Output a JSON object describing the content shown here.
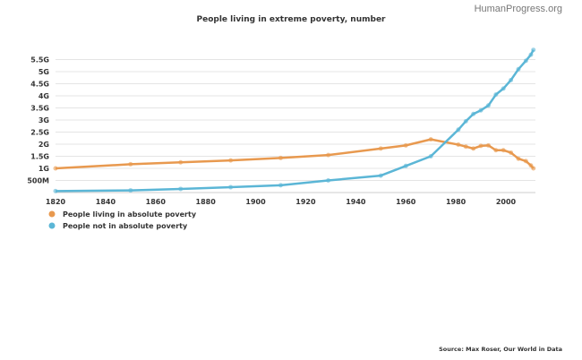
{
  "brand": "HumanProgress.org",
  "source": "Source: Max Roser, Our World in Data",
  "chart_data": {
    "type": "line",
    "title": "People living in extreme poverty, number",
    "xlabel": "",
    "ylabel": "",
    "xlim": [
      1820,
      2011
    ],
    "ylim": [
      0,
      5.9
    ],
    "x_ticks": [
      1820,
      1840,
      1860,
      1880,
      1900,
      1920,
      1940,
      1960,
      1980,
      2000
    ],
    "y_ticks": [
      {
        "v": 0.5,
        "label": "500M"
      },
      {
        "v": 1,
        "label": "1G"
      },
      {
        "v": 1.5,
        "label": "1.5G"
      },
      {
        "v": 2,
        "label": "2G"
      },
      {
        "v": 2.5,
        "label": "2.5G"
      },
      {
        "v": 3,
        "label": "3G"
      },
      {
        "v": 3.5,
        "label": "3.5G"
      },
      {
        "v": 4,
        "label": "4G"
      },
      {
        "v": 4.5,
        "label": "4.5G"
      },
      {
        "v": 5,
        "label": "5G"
      },
      {
        "v": 5.5,
        "label": "5.5G"
      }
    ],
    "grid": true,
    "legend_position": "bottom-left",
    "series": [
      {
        "name": "People living in absolute poverty",
        "color": "#e8994f",
        "x": [
          1820,
          1850,
          1870,
          1890,
          1910,
          1929,
          1950,
          1960,
          1970,
          1981,
          1984,
          1987,
          1990,
          1993,
          1996,
          1999,
          2002,
          2005,
          2008,
          2010,
          2011
        ],
        "values": [
          1.0,
          1.17,
          1.25,
          1.33,
          1.43,
          1.55,
          1.82,
          1.95,
          2.2,
          1.98,
          1.9,
          1.82,
          1.93,
          1.95,
          1.75,
          1.75,
          1.65,
          1.4,
          1.3,
          1.12,
          1.0
        ]
      },
      {
        "name": "People not in absolute poverty",
        "color": "#5bb6d6",
        "x": [
          1820,
          1850,
          1870,
          1890,
          1910,
          1929,
          1950,
          1960,
          1970,
          1981,
          1984,
          1987,
          1990,
          1993,
          1996,
          1999,
          2002,
          2005,
          2008,
          2010,
          2011
        ],
        "values": [
          0.06,
          0.09,
          0.15,
          0.22,
          0.3,
          0.5,
          0.7,
          1.1,
          1.5,
          2.6,
          2.95,
          3.25,
          3.4,
          3.6,
          4.05,
          4.3,
          4.65,
          5.1,
          5.45,
          5.7,
          5.9
        ]
      }
    ]
  }
}
